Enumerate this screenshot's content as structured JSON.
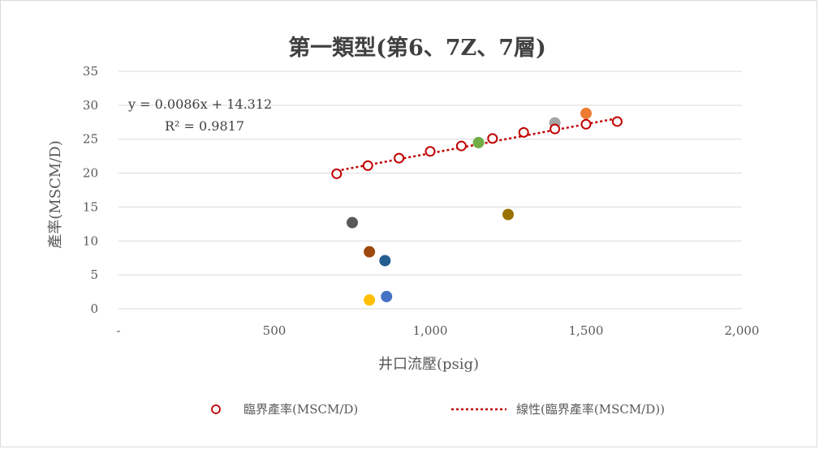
{
  "chart_data": {
    "type": "scatter",
    "title": "第一類型(第6、7Z、7層)",
    "xlabel": "井口流壓(psig)",
    "ylabel": "產率(MSCM/D)",
    "xlim": [
      0,
      2000
    ],
    "ylim": [
      0,
      35
    ],
    "x_ticks": [
      0,
      500,
      1000,
      1500,
      2000
    ],
    "x_tick_labels": [
      "-",
      "500",
      "1,000",
      "1,500",
      "2,000"
    ],
    "y_ticks": [
      0,
      5,
      10,
      15,
      20,
      25,
      30,
      35
    ],
    "y_tick_labels": [
      "0",
      "5",
      "10",
      "15",
      "20",
      "25",
      "30",
      "35"
    ],
    "grid": "horizontal",
    "legend_position": "bottom",
    "series": [
      {
        "name": "臨界產率(MSCM/D)",
        "marker": "open-circle",
        "color": "#c00000",
        "points": [
          {
            "x": 700,
            "y": 19.9
          },
          {
            "x": 800,
            "y": 21.1
          },
          {
            "x": 900,
            "y": 22.2
          },
          {
            "x": 1000,
            "y": 23.2
          },
          {
            "x": 1100,
            "y": 24.0
          },
          {
            "x": 1200,
            "y": 25.1
          },
          {
            "x": 1300,
            "y": 26.0
          },
          {
            "x": 1400,
            "y": 26.5
          },
          {
            "x": 1500,
            "y": 27.2
          },
          {
            "x": 1600,
            "y": 27.6
          }
        ]
      }
    ],
    "trendline": {
      "name": "線性(臨界產率(MSCM/D))",
      "color": "#c00000",
      "slope": 0.0086,
      "intercept": 14.312,
      "x_range": [
        700,
        1600
      ],
      "equation": "y = 0.0086x + 14.312",
      "r_squared": "R² = 0.9817"
    },
    "other_points": [
      {
        "x": 750,
        "y": 12.7,
        "color": "#595959"
      },
      {
        "x": 805,
        "y": 8.4,
        "color": "#9e480e"
      },
      {
        "x": 855,
        "y": 7.1,
        "color": "#255e91"
      },
      {
        "x": 805,
        "y": 1.3,
        "color": "#ffc000"
      },
      {
        "x": 860,
        "y": 1.8,
        "color": "#4472c4"
      },
      {
        "x": 1155,
        "y": 24.5,
        "color": "#70ad47"
      },
      {
        "x": 1250,
        "y": 13.9,
        "color": "#997300"
      },
      {
        "x": 1400,
        "y": 27.4,
        "color": "#a5a5a5"
      },
      {
        "x": 1500,
        "y": 28.8,
        "color": "#ed7d31"
      }
    ]
  }
}
